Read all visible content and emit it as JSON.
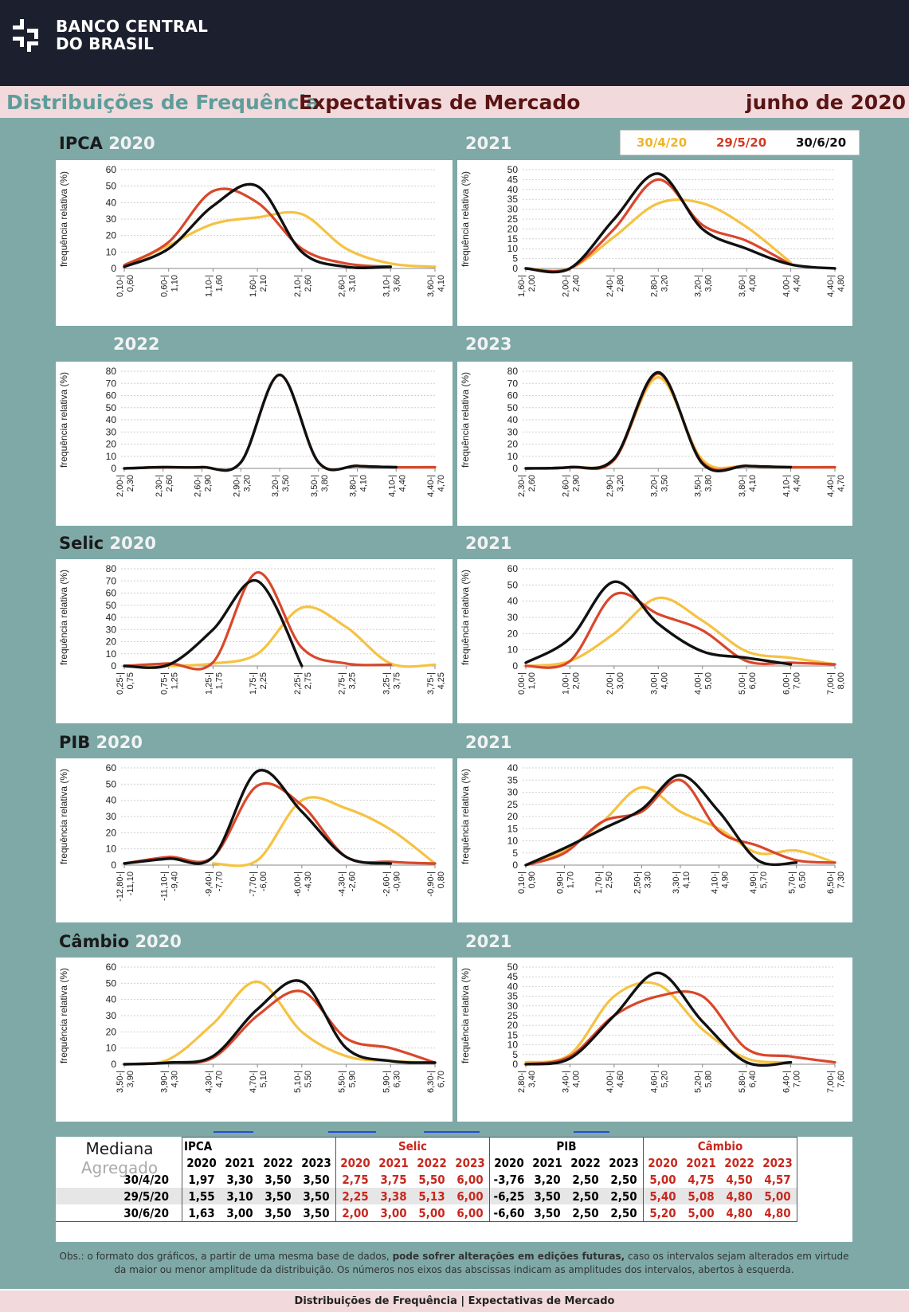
{
  "header": {
    "logo_line1": "BANCO CENTRAL",
    "logo_line2": "DO BRASIL",
    "title_part1": "Distribuições de Frequência",
    "title_part2": "Expectativas de Mercado",
    "date": "junho de 2020"
  },
  "legend": [
    {
      "label": "30/4/20",
      "color": "#f5c242"
    },
    {
      "label": "29/5/20",
      "color": "#d9472b"
    },
    {
      "label": "30/6/20",
      "color": "#111111"
    }
  ],
  "section_labels": {
    "ipca": "IPCA",
    "selic": "Selic",
    "pib": "PIB",
    "cambio": "Câmbio",
    "y2020": "2020",
    "y2021": "2021",
    "y2022": "2022",
    "y2023": "2023"
  },
  "chart_data": [
    {
      "type": "line",
      "indicator": "IPCA",
      "year": "2020",
      "ylabel": "frequência relativa (%)",
      "ylim": [
        0,
        60
      ],
      "yticks": [
        0,
        10,
        20,
        30,
        40,
        50,
        60
      ],
      "categories": [
        "0,10 - 0,60",
        "0,60 - 1,10",
        "1,10 - 1,60",
        "1,60 - 2,10",
        "2,10 - 2,60",
        "2,60 - 3,10",
        "3,10 - 3,60",
        "3,60 - 4,10"
      ],
      "series": [
        {
          "name": "30/4/20",
          "values": [
            1,
            14,
            27,
            31,
            33,
            12,
            3,
            1
          ]
        },
        {
          "name": "29/5/20",
          "values": [
            2,
            16,
            47,
            40,
            12,
            3,
            1,
            null
          ]
        },
        {
          "name": "30/6/20",
          "values": [
            1,
            12,
            38,
            50,
            10,
            1,
            1,
            null
          ]
        }
      ]
    },
    {
      "type": "line",
      "indicator": "IPCA",
      "year": "2021",
      "ylabel": "frequência relativa (%)",
      "ylim": [
        0,
        50
      ],
      "yticks": [
        0,
        5,
        10,
        15,
        20,
        25,
        30,
        35,
        40,
        45,
        50
      ],
      "categories": [
        "1,60 - 2,00",
        "2,00 - 2,40",
        "2,40 - 2,80",
        "2,80 - 3,20",
        "3,20 - 3,60",
        "3,60 - 4,00",
        "4,00 - 4,40",
        "4,40 - 4,80"
      ],
      "series": [
        {
          "name": "30/4/20",
          "values": [
            0,
            0,
            16,
            33,
            33,
            21,
            3,
            null
          ]
        },
        {
          "name": "29/5/20",
          "values": [
            0,
            0,
            20,
            45,
            22,
            14,
            2,
            null
          ]
        },
        {
          "name": "30/6/20",
          "values": [
            0,
            0,
            25,
            48,
            20,
            10,
            2,
            0
          ]
        }
      ]
    },
    {
      "type": "line",
      "indicator": "IPCA",
      "year": "2022",
      "ylabel": "frequência relativa (%)",
      "ylim": [
        0,
        80
      ],
      "yticks": [
        0,
        10,
        20,
        30,
        40,
        50,
        60,
        70,
        80
      ],
      "categories": [
        "2,00 - 2,30",
        "2,30 - 2,60",
        "2,60 - 2,90",
        "2,90 - 3,20",
        "3,20 - 3,50",
        "3,50 - 3,80",
        "3,80 - 4,10",
        "4,10 - 4,40",
        "4,40 - 4,70"
      ],
      "series": [
        {
          "name": "30/4/20",
          "values": [
            0,
            1,
            1,
            5,
            77,
            5,
            2,
            1,
            1
          ]
        },
        {
          "name": "29/5/20",
          "values": [
            0,
            1,
            1,
            5,
            77,
            5,
            2,
            1,
            1
          ]
        },
        {
          "name": "30/6/20",
          "values": [
            0,
            1,
            1,
            5,
            77,
            5,
            2,
            1,
            null
          ]
        }
      ]
    },
    {
      "type": "line",
      "indicator": "IPCA",
      "year": "2023",
      "ylabel": "frequência relativa (%)",
      "ylim": [
        0,
        80
      ],
      "yticks": [
        0,
        10,
        20,
        30,
        40,
        50,
        60,
        70,
        80
      ],
      "categories": [
        "2,30 - 2,60",
        "2,60 - 2,90",
        "2,90 - 3,20",
        "3,20 - 3,50",
        "3,50 - 3,80",
        "3,80 - 4,10",
        "4,10 - 4,40",
        "4,40 - 4,70"
      ],
      "series": [
        {
          "name": "30/4/20",
          "values": [
            0,
            1,
            8,
            75,
            7,
            2,
            1,
            1
          ]
        },
        {
          "name": "29/5/20",
          "values": [
            0,
            1,
            7,
            78,
            5,
            2,
            1,
            1
          ]
        },
        {
          "name": "30/6/20",
          "values": [
            0,
            1,
            8,
            79,
            4,
            2,
            1,
            null
          ]
        }
      ]
    },
    {
      "type": "line",
      "indicator": "Selic",
      "year": "2020",
      "ylabel": "frequência relativa (%)",
      "ylim": [
        0,
        80
      ],
      "yticks": [
        0,
        10,
        20,
        30,
        40,
        50,
        60,
        70,
        80
      ],
      "categories": [
        "0,25 - 0,75",
        "0,75 - 1,25",
        "1,25 - 1,75",
        "1,75 - 2,25",
        "2,25 - 2,75",
        "2,75 - 3,25",
        "3,25 - 3,75",
        "3,75 - 4,25"
      ],
      "series": [
        {
          "name": "30/4/20",
          "values": [
            0,
            0,
            2,
            10,
            48,
            32,
            2,
            1
          ]
        },
        {
          "name": "29/5/20",
          "values": [
            0,
            2,
            3,
            77,
            15,
            2,
            1,
            null
          ]
        },
        {
          "name": "30/6/20",
          "values": [
            0,
            1,
            30,
            70,
            0,
            null,
            null,
            null
          ]
        }
      ]
    },
    {
      "type": "line",
      "indicator": "Selic",
      "year": "2021",
      "ylabel": "frequência relativa (%)",
      "ylim": [
        0,
        60
      ],
      "yticks": [
        0,
        10,
        20,
        30,
        40,
        50,
        60
      ],
      "categories": [
        "0,00 - 1,00",
        "1,00 - 2,00",
        "2,00 - 3,00",
        "3,00 - 4,00",
        "4,00 - 5,00",
        "5,00 - 6,00",
        "6,00 - 7,00",
        "7,00 - 8,00"
      ],
      "series": [
        {
          "name": "30/4/20",
          "values": [
            0,
            3,
            20,
            42,
            28,
            9,
            5,
            1
          ]
        },
        {
          "name": "29/5/20",
          "values": [
            0,
            3,
            44,
            32,
            22,
            3,
            2,
            1
          ]
        },
        {
          "name": "30/6/20",
          "values": [
            2,
            17,
            52,
            26,
            9,
            5,
            1,
            null
          ]
        }
      ]
    },
    {
      "type": "line",
      "indicator": "PIB",
      "year": "2020",
      "ylabel": "frequência relativa (%)",
      "ylim": [
        0,
        60
      ],
      "yticks": [
        0,
        10,
        20,
        30,
        40,
        50,
        60
      ],
      "categories": [
        "-12,80 - -11,10",
        "-11,10 - -9,40",
        "-9,40 - -7,70",
        "-7,70 - -6,00",
        "-6,00 - -4,30",
        "-4,30 - -2,60",
        "-2,60 - -0,90",
        "-0,90 - 0,80"
      ],
      "series": [
        {
          "name": "30/4/20",
          "values": [
            null,
            null,
            1,
            3,
            40,
            35,
            22,
            1
          ]
        },
        {
          "name": "29/5/20",
          "values": [
            1,
            5,
            5,
            49,
            37,
            5,
            2,
            1
          ]
        },
        {
          "name": "30/6/20",
          "values": [
            1,
            4,
            5,
            58,
            33,
            5,
            1,
            null
          ]
        }
      ]
    },
    {
      "type": "line",
      "indicator": "PIB",
      "year": "2021",
      "ylabel": "frequência relativa (%)",
      "ylim": [
        0,
        40
      ],
      "yticks": [
        0,
        5,
        10,
        15,
        20,
        25,
        30,
        35,
        40
      ],
      "categories": [
        "0,10 - 0,90",
        "0,90 - 1,70",
        "1,70 - 2,50",
        "2,50 - 3,30",
        "3,30 - 4,10",
        "4,10 - 4,90",
        "4,90 - 5,70",
        "5,70 - 6,50",
        "6,50 - 7,30"
      ],
      "series": [
        {
          "name": "30/4/20",
          "values": [
            0,
            6,
            18,
            32,
            22,
            15,
            5,
            6,
            1
          ]
        },
        {
          "name": "29/5/20",
          "values": [
            0,
            5,
            18,
            22,
            35,
            14,
            8,
            2,
            1
          ]
        },
        {
          "name": "30/6/20",
          "values": [
            0,
            7,
            15,
            23,
            37,
            22,
            2,
            1,
            null
          ]
        }
      ]
    },
    {
      "type": "line",
      "indicator": "Câmbio",
      "year": "2020",
      "ylabel": "frequência relativa (%)",
      "ylim": [
        0,
        60
      ],
      "yticks": [
        0,
        10,
        20,
        30,
        40,
        50,
        60
      ],
      "categories": [
        "3,50 - 3,90",
        "3,90 - 4,30",
        "4,30 - 4,70",
        "4,70 - 5,10",
        "5,10 - 5,50",
        "5,50 - 5,90",
        "5,90 - 6,30",
        "6,30 - 6,70"
      ],
      "series": [
        {
          "name": "30/4/20",
          "values": [
            0,
            3,
            25,
            51,
            20,
            5,
            2,
            1
          ]
        },
        {
          "name": "29/5/20",
          "values": [
            0,
            1,
            4,
            30,
            45,
            16,
            10,
            1
          ]
        },
        {
          "name": "30/6/20",
          "values": [
            0,
            1,
            5,
            34,
            51,
            10,
            2,
            1
          ]
        }
      ]
    },
    {
      "type": "line",
      "indicator": "Câmbio",
      "year": "2021",
      "ylabel": "frequência relativa (%)",
      "ylim": [
        0,
        50
      ],
      "yticks": [
        0,
        5,
        10,
        15,
        20,
        25,
        30,
        35,
        40,
        45,
        50
      ],
      "categories": [
        "2,80 - 3,40",
        "3,40 - 4,00",
        "4,00 - 4,60",
        "4,60 - 5,20",
        "5,20 - 5,80",
        "5,80 - 6,40",
        "6,40 - 7,00",
        "7,00 - 7,60"
      ],
      "series": [
        {
          "name": "30/4/20",
          "values": [
            1,
            5,
            35,
            41,
            18,
            3,
            1,
            null
          ]
        },
        {
          "name": "29/5/20",
          "values": [
            0,
            4,
            25,
            35,
            35,
            8,
            4,
            1
          ]
        },
        {
          "name": "30/6/20",
          "values": [
            0,
            3,
            25,
            47,
            22,
            1,
            1,
            null
          ]
        }
      ]
    }
  ],
  "median_table": {
    "title_line1": "Mediana",
    "title_line2": "Agregado",
    "groups": [
      "IPCA",
      "Selic",
      "PIB",
      "Câmbio"
    ],
    "years": [
      "2020",
      "2021",
      "2022",
      "2023"
    ],
    "rows": [
      {
        "label": "30/4/20",
        "values": [
          "1,97",
          "3,30",
          "3,50",
          "3,50",
          "2,75",
          "3,75",
          "5,50",
          "6,00",
          "-3,76",
          "3,20",
          "2,50",
          "2,50",
          "5,00",
          "4,75",
          "4,50",
          "4,57"
        ]
      },
      {
        "label": "29/5/20",
        "values": [
          "1,55",
          "3,10",
          "3,50",
          "3,50",
          "2,25",
          "3,38",
          "5,13",
          "6,00",
          "-6,25",
          "3,50",
          "2,50",
          "2,50",
          "5,40",
          "5,08",
          "4,80",
          "5,00"
        ]
      },
      {
        "label": "30/6/20",
        "values": [
          "1,63",
          "3,00",
          "3,50",
          "3,50",
          "2,00",
          "3,00",
          "5,00",
          "6,00",
          "-6,60",
          "3,50",
          "2,50",
          "2,50",
          "5,20",
          "5,00",
          "4,80",
          "4,80"
        ]
      }
    ]
  },
  "notes": {
    "obs_prefix": "Obs.: o formato dos gráficos, a partir de uma mesma base de dados,",
    "obs_bold": "pode sofrer alterações em edições futuras,",
    "obs_suffix": "caso os intervalos sejam alterados em virtude da maior ou menor amplitude da distribuição. Os números nos eixos das abscissas indicam as amplitudes dos intervalos, abertos à esquerda."
  },
  "footer": "Distribuições de Frequência | Expectativas de Mercado"
}
